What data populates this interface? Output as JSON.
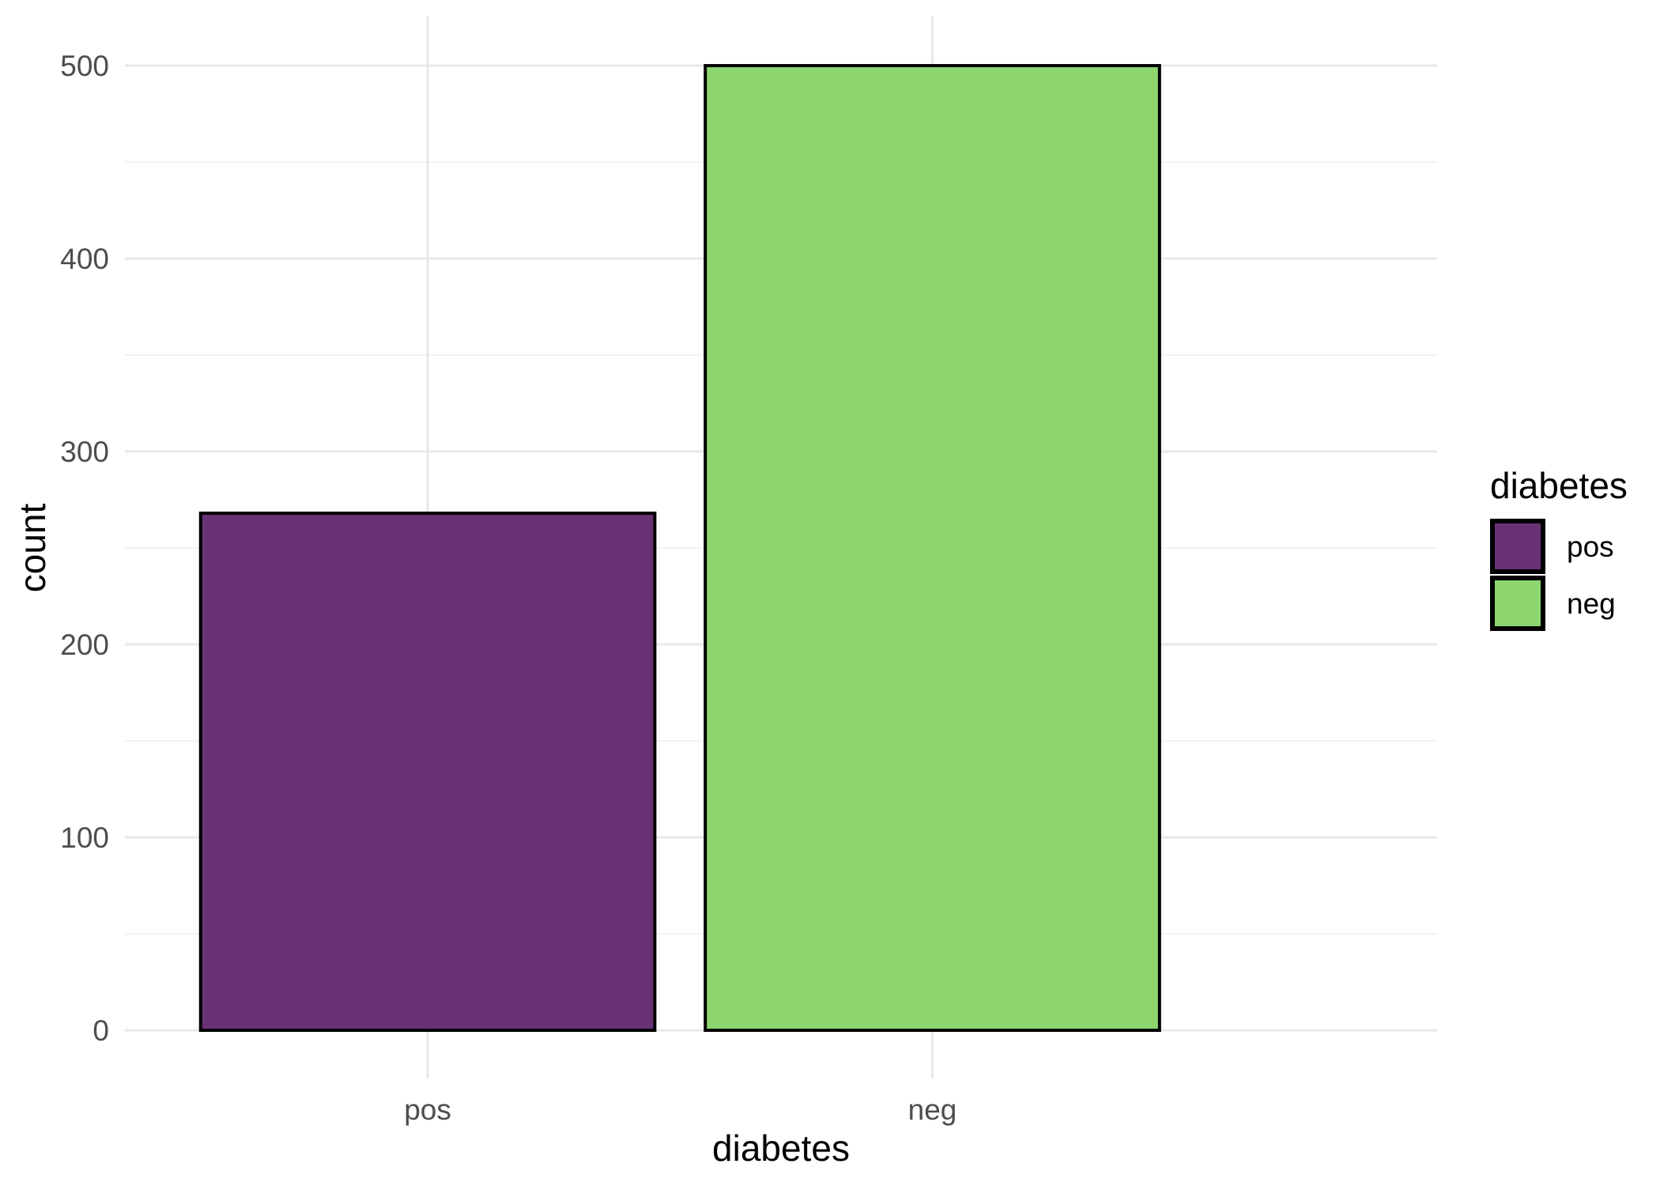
{
  "chart_data": {
    "type": "bar",
    "xlabel": "diabetes",
    "ylabel": "count",
    "categories": [
      "pos",
      "neg"
    ],
    "values": [
      268,
      500
    ],
    "ylim": [
      0,
      500
    ],
    "y_major_ticks": [
      0,
      100,
      200,
      300,
      400,
      500
    ],
    "y_minor_ticks": [
      50,
      150,
      250,
      350,
      450
    ],
    "grid": true,
    "bar_border_color": "#000000",
    "legend": {
      "position": "right",
      "title": "diabetes",
      "entries": [
        {
          "label": "pos",
          "color": "#683275"
        },
        {
          "label": "neg",
          "color": "#8DD66F"
        }
      ]
    },
    "style": {
      "background": "#FFFFFF",
      "grid_major_color": "#E8E8E8",
      "grid_minor_color": "#F2F2F2",
      "tick_label_color": "#4D4D4D",
      "axis_title_color": "#000000",
      "legend_text_color": "#000000"
    }
  }
}
